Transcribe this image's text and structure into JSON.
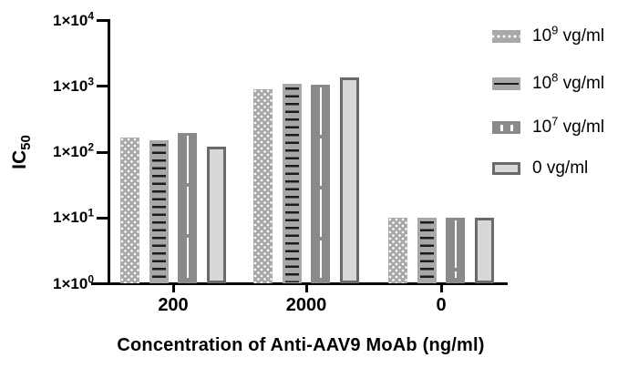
{
  "colors": {
    "axis": "#000000",
    "text": "#000000",
    "bar_gray_mid": "#a8a8a8",
    "bar_gray_dark": "#8a8a8a",
    "bar_gray_light": "#d8d8d8",
    "bar_border_gray": "#6a6a6a",
    "pattern_line_dark": "#1c1c1c",
    "pattern_dot_white": "#ffffff",
    "background": "#ffffff"
  },
  "chart_data": {
    "type": "bar",
    "title": "",
    "xlabel": "Concentration of Anti-AAV9 MoAb (ng/ml)",
    "ylabel": "IC50",
    "ylabel_parts": {
      "base": "IC",
      "sub": "50"
    },
    "yscale": "log10",
    "ylim": [
      1,
      10000
    ],
    "ytick_prefix": "1×10",
    "ytick_exponents": [
      0,
      1,
      2,
      3,
      4
    ],
    "categories": [
      "200",
      "2000",
      "0"
    ],
    "series": [
      {
        "name": "10^9 vg/ml",
        "label_base": "10",
        "label_sup": "9",
        "label_suffix": " vg/ml",
        "pattern": "dots",
        "values": [
          165,
          920,
          10
        ]
      },
      {
        "name": "10^8 vg/ml",
        "label_base": "10",
        "label_sup": "8",
        "label_suffix": " vg/ml",
        "pattern": "hlines",
        "values": [
          150,
          1100,
          10
        ]
      },
      {
        "name": "10^7 vg/ml",
        "label_base": "10",
        "label_sup": "7",
        "label_suffix": " vg/ml",
        "pattern": "vline",
        "values": [
          195,
          1060,
          10
        ]
      },
      {
        "name": "0 vg/ml",
        "label_base": "0",
        "label_sup": "",
        "label_suffix": " vg/ml",
        "pattern": "plain",
        "values": [
          120,
          1350,
          10
        ]
      }
    ],
    "legend_position": "right",
    "grid": false
  }
}
